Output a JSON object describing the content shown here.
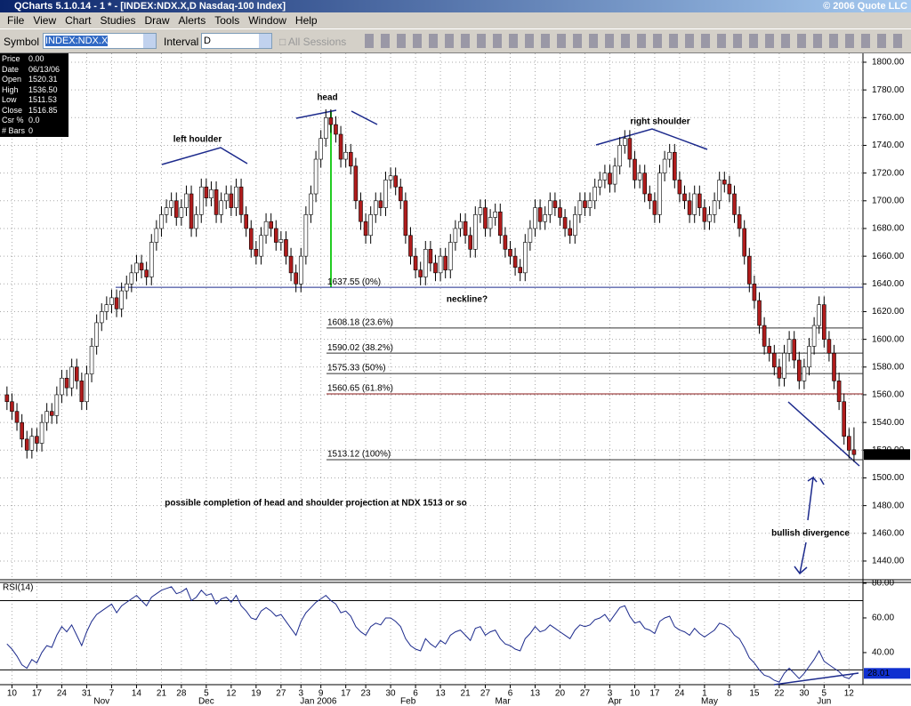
{
  "window": {
    "title": "QCharts 5.1.0.14 - 1 * - [INDEX:NDX.X,D Nasdaq-100 Index]",
    "copyright": "© 2006 Quote LLC"
  },
  "menu": [
    "File",
    "View",
    "Chart",
    "Studies",
    "Draw",
    "Alerts",
    "Tools",
    "Window",
    "Help"
  ],
  "toolbar": {
    "symbol_label": "Symbol",
    "symbol": "INDEX:NDX.X",
    "interval_label": "Interval",
    "interval": "D",
    "sessions": "All Sessions"
  },
  "data_window": {
    "rows": [
      [
        "Price",
        "0.00"
      ],
      [
        "Date",
        "06/13/06"
      ],
      [
        "Open",
        "1520.31"
      ],
      [
        "High",
        "1536.50"
      ],
      [
        "Low",
        "1511.53"
      ],
      [
        "Close",
        "1516.85"
      ],
      [
        "Csr %",
        "0.0"
      ],
      [
        "# Bars",
        "0"
      ]
    ]
  },
  "chart_data": {
    "type": "candlestick",
    "up_color": "#ffffff",
    "down_color": "#b01c1c",
    "open": [
      1560,
      1555,
      1548,
      1540,
      1528,
      1520,
      1530,
      1525,
      1540,
      1548,
      1545,
      1560,
      1572,
      1565,
      1580,
      1570,
      1555,
      1575,
      1595,
      1612,
      1620,
      1625,
      1630,
      1622,
      1635,
      1640,
      1648,
      1655,
      1650,
      1645,
      1670,
      1680,
      1690,
      1695,
      1700,
      1688,
      1695,
      1705,
      1680,
      1690,
      1710,
      1702,
      1708,
      1690,
      1700,
      1705,
      1695,
      1710,
      1690,
      1680,
      1665,
      1660,
      1675,
      1685,
      1680,
      1670,
      1672,
      1660,
      1648,
      1640,
      1660,
      1690,
      1705,
      1730,
      1745,
      1760,
      1755,
      1748,
      1730,
      1735,
      1725,
      1700,
      1685,
      1675,
      1690,
      1700,
      1695,
      1715,
      1718,
      1710,
      1700,
      1675,
      1660,
      1650,
      1645,
      1665,
      1655,
      1648,
      1660,
      1650,
      1670,
      1680,
      1685,
      1675,
      1665,
      1690,
      1695,
      1680,
      1688,
      1692,
      1675,
      1665,
      1660,
      1652,
      1648,
      1670,
      1680,
      1695,
      1685,
      1690,
      1700,
      1695,
      1688,
      1680,
      1675,
      1690,
      1700,
      1695,
      1700,
      1710,
      1715,
      1720,
      1712,
      1725,
      1740,
      1745,
      1730,
      1715,
      1720,
      1705,
      1700,
      1690,
      1720,
      1730,
      1735,
      1715,
      1705,
      1700,
      1690,
      1705,
      1695,
      1685,
      1690,
      1700,
      1715,
      1712,
      1705,
      1690,
      1680,
      1660,
      1640,
      1628,
      1610,
      1595,
      1590,
      1580,
      1572,
      1590,
      1600,
      1585,
      1570,
      1580,
      1595,
      1610,
      1625,
      1600,
      1590,
      1570,
      1555,
      1530,
      1520.31
    ],
    "high": [
      1566,
      1561,
      1554,
      1546,
      1534,
      1536,
      1536,
      1546,
      1554,
      1554,
      1566,
      1578,
      1578,
      1586,
      1586,
      1576,
      1581,
      1601,
      1618,
      1626,
      1631,
      1636,
      1636,
      1641,
      1646,
      1654,
      1661,
      1661,
      1656,
      1676,
      1686,
      1696,
      1701,
      1706,
      1706,
      1701,
      1711,
      1711,
      1696,
      1716,
      1716,
      1714,
      1714,
      1706,
      1711,
      1711,
      1716,
      1716,
      1696,
      1686,
      1671,
      1681,
      1691,
      1691,
      1686,
      1678,
      1678,
      1666,
      1654,
      1666,
      1696,
      1711,
      1736,
      1751,
      1766,
      1766,
      1761,
      1754,
      1741,
      1741,
      1731,
      1706,
      1691,
      1696,
      1706,
      1706,
      1721,
      1724,
      1724,
      1716,
      1706,
      1681,
      1666,
      1656,
      1671,
      1671,
      1661,
      1666,
      1666,
      1676,
      1686,
      1691,
      1691,
      1681,
      1696,
      1701,
      1701,
      1694,
      1698,
      1698,
      1681,
      1671,
      1666,
      1658,
      1676,
      1686,
      1701,
      1701,
      1696,
      1706,
      1706,
      1701,
      1694,
      1686,
      1696,
      1706,
      1706,
      1706,
      1716,
      1721,
      1726,
      1726,
      1731,
      1746,
      1751,
      1751,
      1736,
      1726,
      1726,
      1711,
      1706,
      1726,
      1736,
      1741,
      1741,
      1721,
      1711,
      1706,
      1711,
      1711,
      1701,
      1696,
      1706,
      1721,
      1721,
      1718,
      1711,
      1696,
      1686,
      1666,
      1646,
      1634,
      1616,
      1601,
      1596,
      1586,
      1596,
      1606,
      1606,
      1591,
      1586,
      1601,
      1616,
      1631,
      1631,
      1606,
      1596,
      1576,
      1561,
      1536,
      1536.5
    ],
    "low": [
      1549,
      1542,
      1534,
      1522,
      1514,
      1514,
      1519,
      1519,
      1534,
      1539,
      1539,
      1554,
      1559,
      1559,
      1564,
      1549,
      1549,
      1569,
      1589,
      1606,
      1614,
      1619,
      1616,
      1616,
      1629,
      1634,
      1642,
      1644,
      1639,
      1639,
      1664,
      1674,
      1684,
      1689,
      1682,
      1682,
      1689,
      1674,
      1674,
      1684,
      1696,
      1696,
      1684,
      1684,
      1694,
      1689,
      1689,
      1684,
      1674,
      1659,
      1654,
      1654,
      1669,
      1674,
      1664,
      1664,
      1654,
      1642,
      1634,
      1634,
      1654,
      1684,
      1699,
      1724,
      1739,
      1749,
      1742,
      1724,
      1724,
      1719,
      1694,
      1679,
      1669,
      1669,
      1684,
      1689,
      1689,
      1709,
      1704,
      1694,
      1669,
      1654,
      1644,
      1639,
      1639,
      1649,
      1642,
      1642,
      1644,
      1644,
      1664,
      1674,
      1669,
      1659,
      1659,
      1684,
      1674,
      1674,
      1682,
      1669,
      1659,
      1654,
      1646,
      1642,
      1642,
      1664,
      1674,
      1679,
      1679,
      1684,
      1689,
      1682,
      1674,
      1669,
      1669,
      1684,
      1689,
      1689,
      1694,
      1704,
      1709,
      1706,
      1706,
      1719,
      1734,
      1724,
      1709,
      1709,
      1699,
      1694,
      1684,
      1684,
      1714,
      1724,
      1709,
      1699,
      1694,
      1684,
      1684,
      1689,
      1679,
      1679,
      1684,
      1694,
      1706,
      1699,
      1684,
      1674,
      1654,
      1634,
      1622,
      1604,
      1589,
      1584,
      1574,
      1566,
      1566,
      1584,
      1579,
      1564,
      1564,
      1574,
      1589,
      1604,
      1594,
      1584,
      1564,
      1549,
      1524,
      1514,
      1511.53
    ],
    "close": [
      1555,
      1548,
      1540,
      1528,
      1520,
      1530,
      1525,
      1540,
      1548,
      1545,
      1560,
      1572,
      1565,
      1580,
      1570,
      1555,
      1575,
      1595,
      1612,
      1620,
      1625,
      1630,
      1622,
      1635,
      1640,
      1648,
      1655,
      1650,
      1645,
      1670,
      1680,
      1690,
      1695,
      1700,
      1688,
      1695,
      1705,
      1680,
      1690,
      1710,
      1702,
      1708,
      1690,
      1700,
      1705,
      1695,
      1710,
      1690,
      1680,
      1665,
      1660,
      1675,
      1685,
      1680,
      1670,
      1672,
      1660,
      1648,
      1640,
      1660,
      1690,
      1705,
      1730,
      1745,
      1760,
      1755,
      1748,
      1730,
      1735,
      1725,
      1700,
      1685,
      1675,
      1690,
      1700,
      1695,
      1715,
      1718,
      1710,
      1700,
      1675,
      1660,
      1650,
      1645,
      1665,
      1655,
      1648,
      1660,
      1650,
      1670,
      1680,
      1685,
      1675,
      1665,
      1690,
      1695,
      1680,
      1688,
      1692,
      1675,
      1665,
      1660,
      1652,
      1648,
      1670,
      1680,
      1695,
      1685,
      1690,
      1700,
      1695,
      1688,
      1680,
      1675,
      1690,
      1700,
      1695,
      1700,
      1710,
      1715,
      1720,
      1712,
      1725,
      1740,
      1745,
      1730,
      1715,
      1720,
      1705,
      1700,
      1690,
      1720,
      1730,
      1735,
      1715,
      1705,
      1700,
      1690,
      1705,
      1695,
      1685,
      1690,
      1700,
      1715,
      1712,
      1705,
      1690,
      1680,
      1660,
      1640,
      1628,
      1610,
      1595,
      1590,
      1580,
      1572,
      1590,
      1600,
      1585,
      1570,
      1580,
      1595,
      1610,
      1625,
      1600,
      1590,
      1570,
      1555,
      1530,
      1520,
      1516.85
    ],
    "xlim": [
      -1.4,
      171.8
    ],
    "xticks": [
      {
        "value": 1,
        "label": "10"
      },
      {
        "value": 6,
        "label": "17"
      },
      {
        "value": 11,
        "label": "24"
      },
      {
        "value": 16,
        "label": "31"
      },
      {
        "value": 21,
        "label": "7"
      },
      {
        "value": 26,
        "label": "14"
      },
      {
        "value": 31,
        "label": "21"
      },
      {
        "value": 35,
        "label": "28"
      },
      {
        "value": 40,
        "label": "5"
      },
      {
        "value": 45,
        "label": "12"
      },
      {
        "value": 50,
        "label": "19"
      },
      {
        "value": 55,
        "label": "27"
      },
      {
        "value": 59,
        "label": "3"
      },
      {
        "value": 63,
        "label": "9"
      },
      {
        "value": 68,
        "label": "17"
      },
      {
        "value": 72,
        "label": "23"
      },
      {
        "value": 77,
        "label": "30"
      },
      {
        "value": 82,
        "label": "6"
      },
      {
        "value": 87,
        "label": "13"
      },
      {
        "value": 92,
        "label": "21"
      },
      {
        "value": 96,
        "label": "27"
      },
      {
        "value": 101,
        "label": "6"
      },
      {
        "value": 106,
        "label": "13"
      },
      {
        "value": 111,
        "label": "20"
      },
      {
        "value": 116,
        "label": "27"
      },
      {
        "value": 121,
        "label": "3"
      },
      {
        "value": 126,
        "label": "10"
      },
      {
        "value": 130,
        "label": "17"
      },
      {
        "value": 135,
        "label": "24"
      },
      {
        "value": 140,
        "label": "1"
      },
      {
        "value": 145,
        "label": "8"
      },
      {
        "value": 150,
        "label": "15"
      },
      {
        "value": 155,
        "label": "22"
      },
      {
        "value": 160,
        "label": "30"
      },
      {
        "value": 164,
        "label": "5"
      },
      {
        "value": 169,
        "label": "12"
      }
    ],
    "months": [
      {
        "value": 19,
        "label": "Nov"
      },
      {
        "value": 40,
        "label": "Dec"
      },
      {
        "value": 62.5,
        "label": "Jan 2006"
      },
      {
        "value": 80.5,
        "label": "Feb"
      },
      {
        "value": 99.5,
        "label": "Mar"
      },
      {
        "value": 122,
        "label": "Apr"
      },
      {
        "value": 141,
        "label": "May"
      },
      {
        "value": 164,
        "label": "Jun"
      }
    ],
    "ylim": [
      1426.5,
      1806.4
    ],
    "yticks": [
      {
        "value": 1440,
        "label": "1440.00"
      },
      {
        "value": 1460,
        "label": "1460.00"
      },
      {
        "value": 1480,
        "label": "1480.00"
      },
      {
        "value": 1500,
        "label": "1500.00"
      },
      {
        "value": 1520,
        "label": "1520.00"
      },
      {
        "value": 1540,
        "label": "1540.00"
      },
      {
        "value": 1560,
        "label": "1560.00"
      },
      {
        "value": 1580,
        "label": "1580.00"
      },
      {
        "value": 1600,
        "label": "1600.00"
      },
      {
        "value": 1620,
        "label": "1620.00"
      },
      {
        "value": 1640,
        "label": "1640.00"
      },
      {
        "value": 1660,
        "label": "1660.00"
      },
      {
        "value": 1680,
        "label": "1680.00"
      },
      {
        "value": 1700,
        "label": "1700.00"
      },
      {
        "value": 1720,
        "label": "1720.00"
      },
      {
        "value": 1740,
        "label": "1740.00"
      },
      {
        "value": 1760,
        "label": "1760.00"
      },
      {
        "value": 1780,
        "label": "1780.00"
      },
      {
        "value": 1800,
        "label": "1800.00"
      }
    ],
    "grid": true,
    "levels": [
      {
        "value": 1637.55,
        "label": "1637.55 (0%)",
        "color": "#1c2a8c"
      },
      {
        "value": 1608.18,
        "label": "1608.18 (23.6%)",
        "color": "#333333"
      },
      {
        "value": 1590.02,
        "label": "1590.02 (38.2%)",
        "color": "#333333"
      },
      {
        "value": 1575.33,
        "label": "1575.33 (50%)",
        "color": "#333333"
      },
      {
        "value": 1560.65,
        "label": "1560.65 (61.8%)",
        "color": "#8b1a1a"
      },
      {
        "value": 1513.12,
        "label": "1513.12 (100%)",
        "color": "#333333"
      }
    ],
    "annotations": {
      "head": "head",
      "left": "left houlder",
      "right": "right shoulder",
      "neckline": "neckline?",
      "projection": "possible completion of head and shoulder projection at NDX 1513 or so",
      "divergence": "bullish divergence"
    },
    "rsi": {
      "title": "RSI(14)",
      "color": "#1c2a8c",
      "ylim": [
        21.5,
        80.5
      ],
      "bands": [
        30,
        70
      ],
      "yticks": [
        {
          "value": 40,
          "label": "40.00"
        },
        {
          "value": 60,
          "label": "60.00"
        },
        {
          "value": 80,
          "label": "80.00"
        }
      ],
      "values": [
        45,
        42,
        38,
        33,
        31,
        36,
        34,
        40,
        44,
        43,
        50,
        55,
        52,
        56,
        50,
        44,
        52,
        58,
        62,
        64,
        66,
        68,
        63,
        67,
        69,
        71,
        73,
        70,
        67,
        72,
        74,
        76,
        77,
        78,
        74,
        75,
        77,
        70,
        72,
        76,
        73,
        74,
        68,
        71,
        72,
        69,
        73,
        67,
        64,
        60,
        59,
        64,
        66,
        64,
        61,
        62,
        58,
        54,
        50,
        58,
        63,
        66,
        69,
        71,
        73,
        70,
        68,
        63,
        64,
        61,
        55,
        52,
        50,
        55,
        57,
        56,
        60,
        60,
        58,
        55,
        48,
        44,
        42,
        41,
        48,
        45,
        43,
        47,
        45,
        50,
        52,
        53,
        50,
        47,
        54,
        55,
        50,
        52,
        53,
        48,
        45,
        44,
        42,
        41,
        48,
        51,
        55,
        52,
        53,
        56,
        54,
        52,
        50,
        48,
        53,
        56,
        55,
        56,
        59,
        60,
        62,
        58,
        62,
        66,
        67,
        61,
        57,
        58,
        54,
        53,
        51,
        58,
        60,
        61,
        55,
        53,
        52,
        50,
        54,
        51,
        49,
        51,
        53,
        57,
        56,
        54,
        50,
        48,
        43,
        37,
        34,
        30,
        27,
        26,
        24,
        23,
        28,
        31,
        28,
        25,
        28,
        32,
        36,
        41,
        35,
        33,
        31,
        29,
        26,
        25,
        28.01
      ]
    }
  }
}
